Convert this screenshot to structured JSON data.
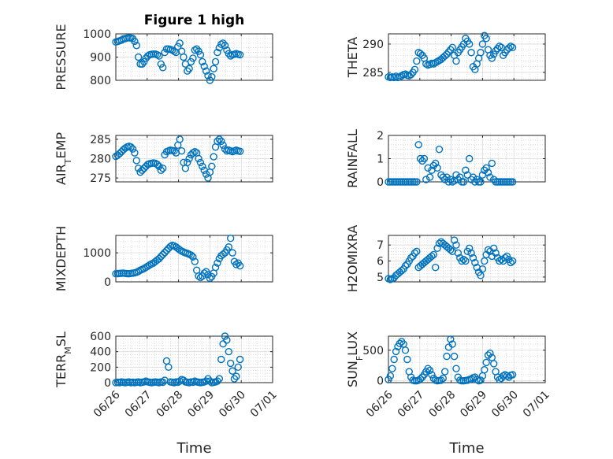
{
  "figure": {
    "title": "Figure 1 high"
  },
  "colors": {
    "series": "#0072BD",
    "axis": "#262626"
  },
  "chart_data": [
    {
      "type": "scatter",
      "ylabel_parts": [
        {
          "t": "PRESSURE"
        }
      ],
      "ylabel": "PRESSURE",
      "xlim": [
        0,
        5
      ],
      "ylim": [
        800,
        1000
      ],
      "yticks": [
        800,
        900,
        1000
      ],
      "yticklabels": [
        "800",
        "900",
        "1000"
      ],
      "xticks": [
        0,
        1,
        2,
        3,
        4,
        5
      ],
      "show_xticklabels": false,
      "grid": true,
      "x": [
        0.0,
        0.06,
        0.12,
        0.18,
        0.24,
        0.3,
        0.36,
        0.42,
        0.48,
        0.54,
        0.6,
        0.66,
        0.72,
        0.78,
        0.84,
        0.9,
        0.96,
        1.02,
        1.08,
        1.14,
        1.2,
        1.26,
        1.32,
        1.38,
        1.44,
        1.5,
        1.56,
        1.62,
        1.68,
        1.74,
        1.8,
        1.86,
        1.92,
        1.98,
        2.04,
        2.1,
        2.16,
        2.22,
        2.28,
        2.34,
        2.4,
        2.46,
        2.52,
        2.58,
        2.64,
        2.7,
        2.76,
        2.82,
        2.88,
        2.94,
        3.0,
        3.06,
        3.12,
        3.18,
        3.24,
        3.3,
        3.36,
        3.42,
        3.48,
        3.54,
        3.6,
        3.66,
        3.72,
        3.78,
        3.84,
        3.9,
        3.96
      ],
      "y": [
        965,
        967,
        970,
        973,
        978,
        980,
        982,
        983,
        982,
        980,
        968,
        950,
        900,
        870,
        870,
        880,
        895,
        905,
        910,
        912,
        913,
        913,
        910,
        905,
        870,
        855,
        920,
        935,
        935,
        933,
        930,
        925,
        920,
        945,
        960,
        925,
        900,
        870,
        840,
        850,
        880,
        895,
        930,
        935,
        925,
        910,
        880,
        860,
        840,
        820,
        800,
        815,
        850,
        880,
        920,
        940,
        955,
        960,
        950,
        930,
        915,
        905,
        910,
        912,
        915,
        912,
        910
      ]
    },
    {
      "type": "scatter",
      "ylabel_parts": [
        {
          "t": "THETA"
        }
      ],
      "ylabel": "THETA",
      "xlim": [
        0,
        5
      ],
      "ylim": [
        283.6,
        291.8
      ],
      "yticks": [
        285,
        290
      ],
      "yticklabels": [
        "285",
        "290"
      ],
      "xticks": [
        0,
        1,
        2,
        3,
        4,
        5
      ],
      "show_xticklabels": false,
      "grid": true,
      "x": [
        0.0,
        0.06,
        0.12,
        0.18,
        0.24,
        0.3,
        0.36,
        0.42,
        0.48,
        0.54,
        0.6,
        0.66,
        0.72,
        0.78,
        0.84,
        0.9,
        0.96,
        1.02,
        1.08,
        1.14,
        1.2,
        1.26,
        1.32,
        1.38,
        1.44,
        1.5,
        1.56,
        1.62,
        1.68,
        1.74,
        1.8,
        1.86,
        1.92,
        1.98,
        2.04,
        2.1,
        2.16,
        2.22,
        2.28,
        2.34,
        2.4,
        2.46,
        2.52,
        2.58,
        2.64,
        2.7,
        2.76,
        2.82,
        2.88,
        2.94,
        3.0,
        3.06,
        3.12,
        3.18,
        3.24,
        3.3,
        3.36,
        3.42,
        3.48,
        3.54,
        3.6,
        3.66,
        3.72,
        3.78,
        3.84,
        3.9,
        3.96
      ],
      "y": [
        284.2,
        284.1,
        284.2,
        284.1,
        284.3,
        284.1,
        284.2,
        284.4,
        284.6,
        284.7,
        284.5,
        284.4,
        284.6,
        285.0,
        285.5,
        287.0,
        288.5,
        288.3,
        288.0,
        287.5,
        286.5,
        286.3,
        286.4,
        286.6,
        286.5,
        286.7,
        286.9,
        287.1,
        287.3,
        287.6,
        287.9,
        288.2,
        288.6,
        289.0,
        289.4,
        288.0,
        287.0,
        288.5,
        289.0,
        289.5,
        290.0,
        291.0,
        290.5,
        290.0,
        288.5,
        286.0,
        285.5,
        286.5,
        287.5,
        288.5,
        290.0,
        291.5,
        291.0,
        289.0,
        288.0,
        287.5,
        288.2,
        288.8,
        289.2,
        289.6,
        289.4,
        288.0,
        288.5,
        289.0,
        289.3,
        289.6,
        289.4
      ]
    },
    {
      "type": "scatter",
      "ylabel_parts": [
        {
          "t": "AIR"
        },
        {
          "t": "T",
          "sub": true
        },
        {
          "t": "EMP"
        }
      ],
      "ylabel": "AIR_TEMP",
      "xlim": [
        0,
        5
      ],
      "ylim": [
        274,
        286
      ],
      "yticks": [
        275,
        280,
        285
      ],
      "yticklabels": [
        "275",
        "280",
        "285"
      ],
      "xticks": [
        0,
        1,
        2,
        3,
        4,
        5
      ],
      "show_xticklabels": false,
      "grid": true,
      "x": [
        0.0,
        0.06,
        0.12,
        0.18,
        0.24,
        0.3,
        0.36,
        0.42,
        0.48,
        0.54,
        0.6,
        0.66,
        0.72,
        0.78,
        0.84,
        0.9,
        0.96,
        1.02,
        1.08,
        1.14,
        1.2,
        1.26,
        1.32,
        1.38,
        1.44,
        1.5,
        1.56,
        1.62,
        1.68,
        1.74,
        1.8,
        1.86,
        1.92,
        1.98,
        2.04,
        2.1,
        2.16,
        2.22,
        2.28,
        2.34,
        2.4,
        2.46,
        2.52,
        2.58,
        2.64,
        2.7,
        2.76,
        2.82,
        2.88,
        2.94,
        3.0,
        3.06,
        3.12,
        3.18,
        3.24,
        3.3,
        3.36,
        3.42,
        3.48,
        3.54,
        3.6,
        3.66,
        3.72,
        3.78,
        3.84,
        3.9,
        3.96
      ],
      "y": [
        280.6,
        280.9,
        281.3,
        281.8,
        282.3,
        282.7,
        283.0,
        283.2,
        283.0,
        282.5,
        281.5,
        279.5,
        277.5,
        276.5,
        277.0,
        277.5,
        278.0,
        278.5,
        278.7,
        278.8,
        278.9,
        278.8,
        278.5,
        278.0,
        277.0,
        277.5,
        281.0,
        281.8,
        282.0,
        282.2,
        282.1,
        282.0,
        281.5,
        283.5,
        285.0,
        282.0,
        279.0,
        277.5,
        279.0,
        280.0,
        281.0,
        281.5,
        281.8,
        281.5,
        280.0,
        279.0,
        278.0,
        277.0,
        276.0,
        275.0,
        276.5,
        278.0,
        280.5,
        283.0,
        284.5,
        285.0,
        284.5,
        283.5,
        282.5,
        282.0,
        282.2,
        282.0,
        281.8,
        282.0,
        282.2,
        282.0,
        281.9
      ]
    },
    {
      "type": "scatter",
      "ylabel_parts": [
        {
          "t": "RAINFALL"
        }
      ],
      "ylabel": "RAINFALL",
      "xlim": [
        0,
        5
      ],
      "ylim": [
        0,
        2
      ],
      "yticks": [
        0,
        1,
        2
      ],
      "yticklabels": [
        "0",
        "1",
        "2"
      ],
      "xticks": [
        0,
        1,
        2,
        3,
        4,
        5
      ],
      "show_xticklabels": false,
      "grid": true,
      "x": [
        0.0,
        0.06,
        0.12,
        0.18,
        0.24,
        0.3,
        0.36,
        0.42,
        0.48,
        0.54,
        0.6,
        0.66,
        0.72,
        0.78,
        0.84,
        0.9,
        0.96,
        1.02,
        1.08,
        1.14,
        1.2,
        1.26,
        1.32,
        1.38,
        1.44,
        1.5,
        1.56,
        1.62,
        1.68,
        1.74,
        1.8,
        1.86,
        1.92,
        1.98,
        2.04,
        2.1,
        2.16,
        2.22,
        2.28,
        2.34,
        2.4,
        2.46,
        2.52,
        2.58,
        2.64,
        2.7,
        2.76,
        2.82,
        2.88,
        2.94,
        3.0,
        3.06,
        3.12,
        3.18,
        3.24,
        3.3,
        3.36,
        3.42,
        3.48,
        3.54,
        3.6,
        3.66,
        3.72,
        3.78,
        3.84,
        3.9,
        3.96
      ],
      "y": [
        0,
        0,
        0,
        0,
        0,
        0,
        0,
        0,
        0,
        0,
        0,
        0,
        0,
        0,
        0,
        0,
        1.6,
        1.0,
        0.9,
        1.0,
        0.1,
        0.6,
        0.2,
        0.5,
        0.7,
        0.8,
        0.6,
        1.4,
        0.3,
        0.2,
        0.1,
        0.2,
        0,
        0.1,
        0,
        0.05,
        0.3,
        0.1,
        0.2,
        0,
        0,
        0.5,
        0.3,
        1.0,
        0.1,
        0.2,
        0,
        0.1,
        0,
        0,
        0.3,
        0.5,
        0.6,
        0.4,
        0.2,
        0.8,
        0.1,
        0,
        0,
        0,
        0,
        0,
        0,
        0,
        0,
        0,
        0
      ]
    },
    {
      "type": "scatter",
      "ylabel_parts": [
        {
          "t": "MIXDEPTH"
        }
      ],
      "ylabel": "MIXDEPTH",
      "xlim": [
        0,
        5
      ],
      "ylim": [
        0,
        1600
      ],
      "yticks": [
        0,
        1000
      ],
      "yticklabels": [
        "0",
        "1000"
      ],
      "xticks": [
        0,
        1,
        2,
        3,
        4,
        5
      ],
      "show_xticklabels": false,
      "grid": true,
      "x": [
        0.0,
        0.06,
        0.12,
        0.18,
        0.24,
        0.3,
        0.36,
        0.42,
        0.48,
        0.54,
        0.6,
        0.66,
        0.72,
        0.78,
        0.84,
        0.9,
        0.96,
        1.02,
        1.08,
        1.14,
        1.2,
        1.26,
        1.32,
        1.38,
        1.44,
        1.5,
        1.56,
        1.62,
        1.68,
        1.74,
        1.8,
        1.86,
        1.92,
        1.98,
        2.04,
        2.1,
        2.16,
        2.22,
        2.28,
        2.34,
        2.4,
        2.46,
        2.52,
        2.58,
        2.64,
        2.7,
        2.76,
        2.82,
        2.88,
        2.94,
        3.0,
        3.06,
        3.12,
        3.18,
        3.24,
        3.3,
        3.36,
        3.42,
        3.48,
        3.54,
        3.6,
        3.66,
        3.72,
        3.78,
        3.84,
        3.9,
        3.96
      ],
      "y": [
        280,
        285,
        290,
        295,
        300,
        290,
        285,
        280,
        290,
        300,
        310,
        330,
        360,
        400,
        430,
        460,
        500,
        540,
        580,
        620,
        650,
        700,
        750,
        800,
        870,
        940,
        1010,
        1080,
        1150,
        1220,
        1260,
        1240,
        1200,
        1150,
        1100,
        1060,
        1030,
        1000,
        980,
        950,
        920,
        860,
        700,
        400,
        200,
        150,
        200,
        300,
        350,
        250,
        120,
        180,
        300,
        500,
        650,
        800,
        900,
        950,
        1000,
        1100,
        1200,
        1500,
        1000,
        700,
        600,
        650,
        550
      ]
    },
    {
      "type": "scatter",
      "ylabel_parts": [
        {
          "t": "H2OMIXRA"
        }
      ],
      "ylabel": "H2OMIXRA",
      "xlim": [
        0,
        5
      ],
      "ylim": [
        4.7,
        7.6
      ],
      "yticks": [
        5,
        6,
        7
      ],
      "yticklabels": [
        "5",
        "6",
        "7"
      ],
      "xticks": [
        0,
        1,
        2,
        3,
        4,
        5
      ],
      "show_xticklabels": false,
      "grid": true,
      "x": [
        0.0,
        0.06,
        0.12,
        0.18,
        0.24,
        0.3,
        0.36,
        0.42,
        0.48,
        0.54,
        0.6,
        0.66,
        0.72,
        0.78,
        0.84,
        0.9,
        0.96,
        1.02,
        1.08,
        1.14,
        1.2,
        1.26,
        1.32,
        1.38,
        1.44,
        1.5,
        1.56,
        1.62,
        1.68,
        1.74,
        1.8,
        1.86,
        1.92,
        1.98,
        2.04,
        2.1,
        2.16,
        2.22,
        2.28,
        2.34,
        2.4,
        2.46,
        2.52,
        2.58,
        2.64,
        2.7,
        2.76,
        2.82,
        2.88,
        2.94,
        3.0,
        3.06,
        3.12,
        3.18,
        3.24,
        3.3,
        3.36,
        3.42,
        3.48,
        3.54,
        3.6,
        3.66,
        3.72,
        3.78,
        3.84,
        3.9,
        3.96
      ],
      "y": [
        4.9,
        4.85,
        4.9,
        4.95,
        5.1,
        5.2,
        5.3,
        5.4,
        5.5,
        5.7,
        5.8,
        6.0,
        6.2,
        6.3,
        6.5,
        6.6,
        5.6,
        5.7,
        5.8,
        5.9,
        6.0,
        6.1,
        6.2,
        6.3,
        6.4,
        5.6,
        6.8,
        7.1,
        7.2,
        7.1,
        7.0,
        6.9,
        6.8,
        6.7,
        6.6,
        7.3,
        7.0,
        6.5,
        6.2,
        6.0,
        6.1,
        6.0,
        6.6,
        6.8,
        6.5,
        6.2,
        5.9,
        5.6,
        5.3,
        5.1,
        5.5,
        6.0,
        6.4,
        6.7,
        6.6,
        6.3,
        6.8,
        6.5,
        6.2,
        6.0,
        6.1,
        6.0,
        6.2,
        6.3,
        6.1,
        5.9,
        6.0
      ]
    },
    {
      "type": "scatter",
      "ylabel_parts": [
        {
          "t": "TERR"
        },
        {
          "t": "M",
          "sub": true
        },
        {
          "t": "SL"
        }
      ],
      "ylabel": "TERR_MSL",
      "xlim": [
        0,
        5
      ],
      "ylim": [
        0,
        600
      ],
      "yticks": [
        0,
        200,
        400,
        600
      ],
      "yticklabels": [
        "0",
        "200",
        "400",
        "600"
      ],
      "xticks": [
        0,
        1,
        2,
        3,
        4,
        5
      ],
      "xticklabels": [
        "06/26",
        "06/27",
        "06/28",
        "06/29",
        "06/30",
        "07/01"
      ],
      "show_xticklabels": true,
      "xlabel": "Time",
      "grid": true,
      "x": [
        0.0,
        0.06,
        0.12,
        0.18,
        0.24,
        0.3,
        0.36,
        0.42,
        0.48,
        0.54,
        0.6,
        0.66,
        0.72,
        0.78,
        0.84,
        0.9,
        0.96,
        1.02,
        1.08,
        1.14,
        1.2,
        1.26,
        1.32,
        1.38,
        1.44,
        1.5,
        1.56,
        1.62,
        1.68,
        1.74,
        1.8,
        1.86,
        1.92,
        1.98,
        2.04,
        2.1,
        2.16,
        2.22,
        2.28,
        2.34,
        2.4,
        2.46,
        2.52,
        2.58,
        2.64,
        2.7,
        2.76,
        2.82,
        2.88,
        2.94,
        3.0,
        3.06,
        3.12,
        3.18,
        3.24,
        3.3,
        3.36,
        3.42,
        3.48,
        3.54,
        3.6,
        3.66,
        3.72,
        3.78,
        3.84,
        3.9,
        3.96
      ],
      "y": [
        0,
        5,
        0,
        10,
        5,
        0,
        5,
        10,
        0,
        5,
        0,
        5,
        10,
        0,
        5,
        10,
        20,
        10,
        5,
        0,
        5,
        10,
        5,
        0,
        10,
        5,
        30,
        280,
        200,
        10,
        5,
        0,
        10,
        5,
        20,
        40,
        30,
        10,
        5,
        0,
        10,
        5,
        20,
        10,
        5,
        0,
        5,
        10,
        20,
        50,
        20,
        0,
        5,
        10,
        20,
        50,
        300,
        500,
        600,
        550,
        400,
        250,
        150,
        50,
        80,
        200,
        300
      ]
    },
    {
      "type": "scatter",
      "ylabel_parts": [
        {
          "t": "SUN"
        },
        {
          "t": "F",
          "sub": true
        },
        {
          "t": "LUX"
        }
      ],
      "ylabel": "SUN_FLUX",
      "xlim": [
        0,
        5
      ],
      "ylim": [
        -30,
        730
      ],
      "yticks": [
        0,
        500
      ],
      "yticklabels": [
        "0",
        "500"
      ],
      "xticks": [
        0,
        1,
        2,
        3,
        4,
        5
      ],
      "xticklabels": [
        "06/26",
        "06/27",
        "06/28",
        "06/29",
        "06/30",
        "07/01"
      ],
      "show_xticklabels": true,
      "xlabel": "Time",
      "grid": true,
      "x": [
        0.0,
        0.06,
        0.12,
        0.18,
        0.24,
        0.3,
        0.36,
        0.42,
        0.48,
        0.54,
        0.6,
        0.66,
        0.72,
        0.78,
        0.84,
        0.9,
        0.96,
        1.02,
        1.08,
        1.14,
        1.2,
        1.26,
        1.32,
        1.38,
        1.44,
        1.5,
        1.56,
        1.62,
        1.68,
        1.74,
        1.8,
        1.86,
        1.92,
        1.98,
        2.04,
        2.1,
        2.16,
        2.22,
        2.28,
        2.34,
        2.4,
        2.46,
        2.52,
        2.58,
        2.64,
        2.7,
        2.76,
        2.82,
        2.88,
        2.94,
        3.0,
        3.06,
        3.12,
        3.18,
        3.24,
        3.3,
        3.36,
        3.42,
        3.48,
        3.54,
        3.6,
        3.66,
        3.72,
        3.78,
        3.84,
        3.9,
        3.96
      ],
      "y": [
        20,
        80,
        200,
        350,
        480,
        560,
        610,
        640,
        600,
        500,
        350,
        150,
        60,
        10,
        0,
        0,
        10,
        30,
        60,
        100,
        150,
        200,
        170,
        100,
        40,
        10,
        0,
        5,
        10,
        40,
        150,
        400,
        550,
        680,
        600,
        400,
        200,
        60,
        10,
        0,
        0,
        5,
        10,
        20,
        30,
        50,
        60,
        20,
        0,
        10,
        80,
        180,
        300,
        420,
        450,
        380,
        280,
        150,
        60,
        20,
        40,
        80,
        100,
        80,
        60,
        90,
        100
      ]
    }
  ]
}
